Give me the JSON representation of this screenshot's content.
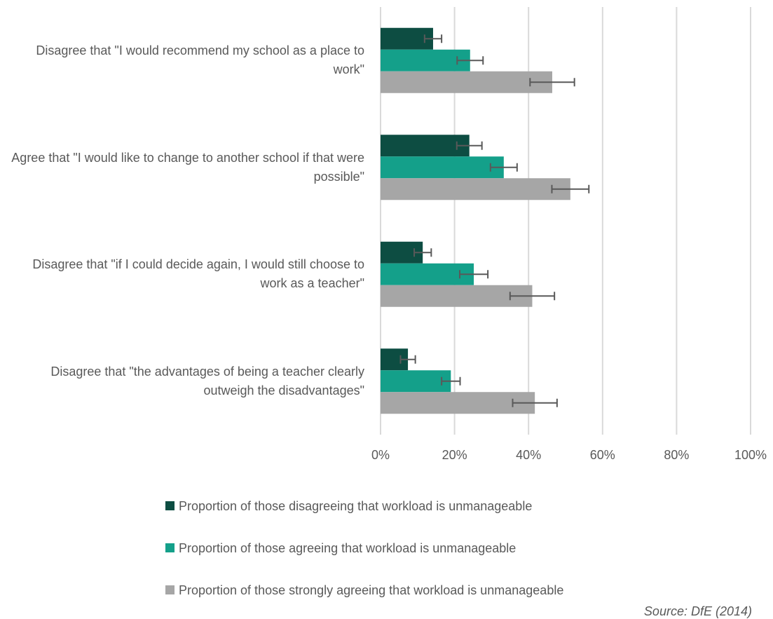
{
  "chart_data": {
    "type": "bar",
    "orientation": "horizontal",
    "categories": [
      "Disagree that \"I would recommend my school as a place to work\"",
      "Agree that \"I would like to change to another school if that were possible\"",
      "Disagree that \"if I could decide again, I would still choose to work as a teacher\"",
      "Disagree that \"the advantages of being a teacher clearly outweigh the disadvantages\""
    ],
    "series": [
      {
        "name": "Proportion of those disagreeing that workload is unmanageable",
        "color": "#0d4d42",
        "values": [
          14.2,
          24,
          11.4,
          7.4
        ],
        "errors": [
          2.3,
          3.4,
          2.3,
          2
        ]
      },
      {
        "name": "Proportion of those agreeing that workload is unmanageable",
        "color": "#14a08a",
        "values": [
          24.2,
          33.3,
          25.2,
          19
        ],
        "errors": [
          3.5,
          3.6,
          3.8,
          2.5
        ]
      },
      {
        "name": "Proportion of those strongly agreeing that workload is unmanageable",
        "color": "#a6a6a6",
        "values": [
          46.4,
          51.3,
          41,
          41.7
        ],
        "errors": [
          6,
          5,
          6,
          6
        ]
      }
    ],
    "xlim": [
      0,
      100
    ],
    "xticks": [
      {
        "value": 0,
        "label": "0%"
      },
      {
        "value": 20,
        "label": "20%"
      },
      {
        "value": 40,
        "label": "40%"
      },
      {
        "value": 60,
        "label": "60%"
      },
      {
        "value": 80,
        "label": "80%"
      },
      {
        "value": 100,
        "label": "100%"
      }
    ],
    "grid": true,
    "legend": "bottom",
    "source": "Source: DfE (2014)"
  }
}
